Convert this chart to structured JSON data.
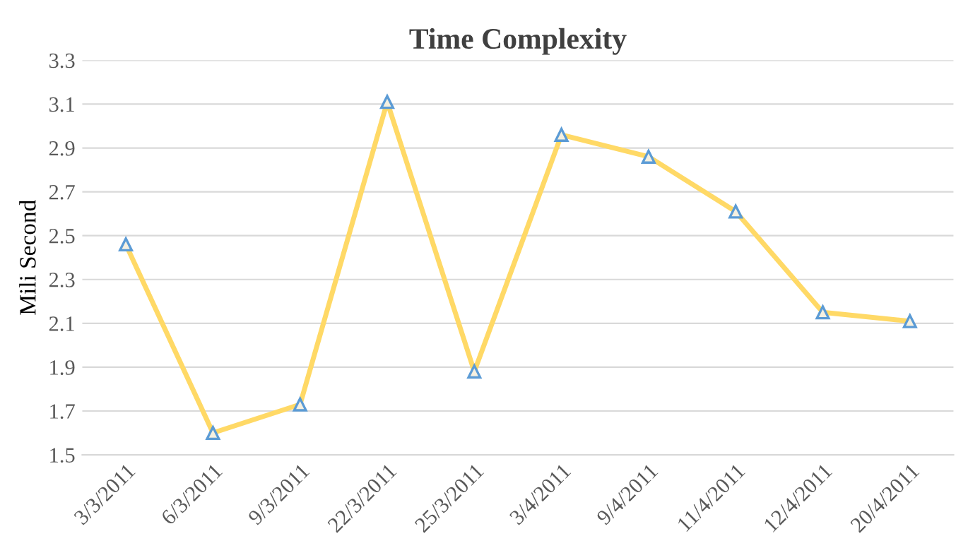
{
  "chart_data": {
    "type": "line",
    "title": "Time Complexity",
    "ylabel": "Mili Second",
    "categories": [
      "3/3/2011",
      "6/3/2011",
      "9/3/2011",
      "22/3/2011",
      "25/3/2011",
      "3/4/2011",
      "9/4/2011",
      "11/4/2011",
      "12/4/2011",
      "20/4/2011"
    ],
    "series": [
      {
        "color": "#ffd966",
        "values": [
          2.46,
          1.6,
          1.73,
          3.11,
          1.88,
          2.96,
          2.86,
          2.61,
          2.15,
          2.11
        ]
      }
    ],
    "ylim": [
      1.5,
      3.3
    ],
    "yticks": [
      {
        "value": 1.5,
        "label": "1.5"
      },
      {
        "value": 1.7,
        "label": "1.7"
      },
      {
        "value": 1.9,
        "label": "1.9"
      },
      {
        "value": 2.1,
        "label": "2.1"
      },
      {
        "value": 2.3,
        "label": "2.3"
      },
      {
        "value": 2.5,
        "label": "2.5"
      },
      {
        "value": 2.7,
        "label": "2.7"
      },
      {
        "value": 2.9,
        "label": "2.9"
      },
      {
        "value": 3.1,
        "label": "3.1"
      },
      {
        "value": 3.3,
        "label": "3.3"
      }
    ],
    "grid": "y",
    "marker": "triangle",
    "line_style": "solid"
  }
}
